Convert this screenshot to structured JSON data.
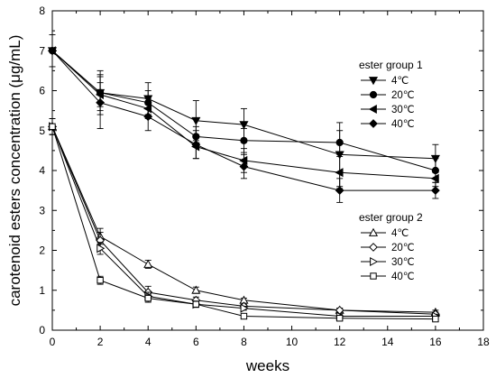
{
  "chart_data": {
    "type": "line",
    "xlabel": "weeks",
    "ylabel": "carotenoid esters concentration (μg/mL)",
    "xlim": [
      0,
      18
    ],
    "ylim": [
      0,
      8
    ],
    "xticks": [
      0,
      2,
      4,
      6,
      8,
      10,
      12,
      14,
      16,
      18
    ],
    "yticks": [
      0,
      1,
      2,
      3,
      4,
      5,
      6,
      7,
      8
    ],
    "grid": false,
    "x": [
      0,
      2,
      4,
      6,
      8,
      12,
      16
    ],
    "groups": [
      {
        "title": "ester group 1",
        "legend_position": "top-right",
        "series": [
          {
            "name": "4℃",
            "marker": "triangle-down",
            "filled": true,
            "values": [
              7.0,
              5.95,
              5.8,
              5.25,
              5.15,
              4.4,
              4.3
            ],
            "errors": [
              0.4,
              0.55,
              0.4,
              0.5,
              0.4,
              0.8,
              0.35
            ]
          },
          {
            "name": "20℃",
            "marker": "circle",
            "filled": true,
            "values": [
              7.0,
              5.95,
              5.7,
              4.85,
              4.75,
              4.7,
              4.0
            ],
            "errors": [
              0,
              0.45,
              0.3,
              0.25,
              0.3,
              0.3,
              0.3
            ]
          },
          {
            "name": "30℃",
            "marker": "triangle-left",
            "filled": true,
            "values": [
              7.0,
              5.9,
              5.55,
              4.6,
              4.25,
              3.95,
              3.8
            ],
            "errors": [
              0,
              0.3,
              0.25,
              0.3,
              0.3,
              0.4,
              0.2
            ]
          },
          {
            "name": "40℃",
            "marker": "diamond",
            "filled": true,
            "values": [
              7.0,
              5.7,
              5.35,
              4.65,
              4.1,
              3.5,
              3.5
            ],
            "errors": [
              0,
              0.65,
              0.35,
              0.35,
              0.3,
              0.3,
              0.2
            ]
          }
        ]
      },
      {
        "title": "ester group 2",
        "legend_position": "center-right",
        "series": [
          {
            "name": "4℃",
            "marker": "triangle-up",
            "filled": false,
            "values": [
              5.1,
              2.35,
              1.65,
              1.0,
              0.75,
              0.5,
              0.45
            ],
            "errors": [
              0.2,
              0.2,
              0.1,
              0.08,
              0.05,
              0.05,
              0.05
            ]
          },
          {
            "name": "20℃",
            "marker": "diamond",
            "filled": false,
            "values": [
              5.1,
              2.25,
              0.95,
              0.75,
              0.6,
              0.5,
              0.4
            ],
            "errors": [
              0.2,
              0.2,
              0.15,
              0.08,
              0.05,
              0.05,
              0.05
            ]
          },
          {
            "name": "30℃",
            "marker": "triangle-right",
            "filled": false,
            "values": [
              5.1,
              2.05,
              0.85,
              0.65,
              0.55,
              0.35,
              0.35
            ],
            "errors": [
              0.2,
              0.15,
              0.1,
              0.08,
              0.05,
              0.05,
              0.05
            ]
          },
          {
            "name": "40℃",
            "marker": "square",
            "filled": false,
            "values": [
              5.1,
              1.25,
              0.8,
              0.65,
              0.35,
              0.3,
              0.28
            ],
            "errors": [
              0.2,
              0.1,
              0.1,
              0.05,
              0.05,
              0.05,
              0.05
            ]
          }
        ]
      }
    ]
  }
}
